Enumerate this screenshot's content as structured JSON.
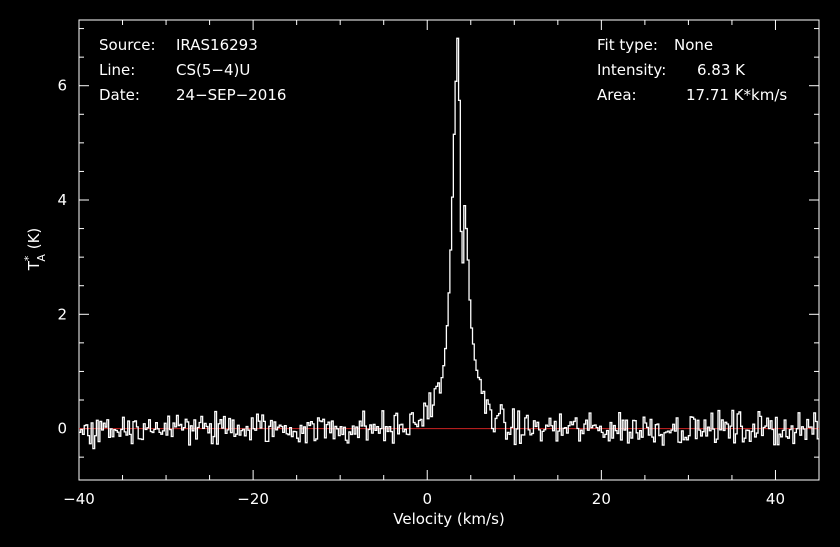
{
  "header_left": {
    "source_label": "Source:",
    "source_value": "IRAS16293",
    "line_label": "Line:",
    "line_value": "CS(5−4)U",
    "date_label": "Date:",
    "date_value": "24−SEP−2016"
  },
  "header_right": {
    "fit_label": "Fit type:",
    "fit_value": "None",
    "intensity_label": "Intensity:",
    "intensity_value": "6.83 K",
    "area_label": "Area:",
    "area_value": "17.71 K*km/s"
  },
  "colors": {
    "background": "#000000",
    "spectrum": "#ffffff",
    "baseline": "#cc2222",
    "axes": "#ffffff"
  },
  "chart_data": {
    "type": "line",
    "step": true,
    "xlabel": "Velocity (km/s)",
    "ylabel": {
      "main": "T",
      "sup": "*",
      "sub": "A",
      "unit": " (K)"
    },
    "xlim": [
      -40,
      45
    ],
    "ylim": [
      -0.9,
      7.15
    ],
    "xticks": [
      -40,
      -20,
      0,
      20,
      40
    ],
    "xtick_labels": [
      "−40",
      "−20",
      "0",
      "20",
      "40"
    ],
    "yticks": [
      0,
      2,
      4,
      6
    ],
    "ytick_labels": [
      "0",
      "2",
      "4",
      "6"
    ],
    "baseline": 0,
    "peak_velocity": 3.5,
    "peak_intensity": 6.83,
    "channel_width_kms": 0.2,
    "noise_rms_K": 0.14,
    "profile": [
      {
        "v": -2.0,
        "t": 0.05
      },
      {
        "v": -1.0,
        "t": 0.15
      },
      {
        "v": 0.0,
        "t": 0.35
      },
      {
        "v": 1.0,
        "t": 0.55
      },
      {
        "v": 1.6,
        "t": 0.8
      },
      {
        "v": 2.0,
        "t": 1.2
      },
      {
        "v": 2.4,
        "t": 2.0
      },
      {
        "v": 2.8,
        "t": 3.5
      },
      {
        "v": 3.2,
        "t": 5.7
      },
      {
        "v": 3.5,
        "t": 6.83
      },
      {
        "v": 3.8,
        "t": 5.2
      },
      {
        "v": 4.0,
        "t": 1.7
      },
      {
        "v": 4.2,
        "t": 4.1
      },
      {
        "v": 4.6,
        "t": 3.3
      },
      {
        "v": 5.0,
        "t": 1.9
      },
      {
        "v": 5.5,
        "t": 1.2
      },
      {
        "v": 6.0,
        "t": 0.75
      },
      {
        "v": 6.6,
        "t": 0.45
      },
      {
        "v": 7.5,
        "t": 0.25
      },
      {
        "v": 9.0,
        "t": 0.05
      }
    ]
  }
}
